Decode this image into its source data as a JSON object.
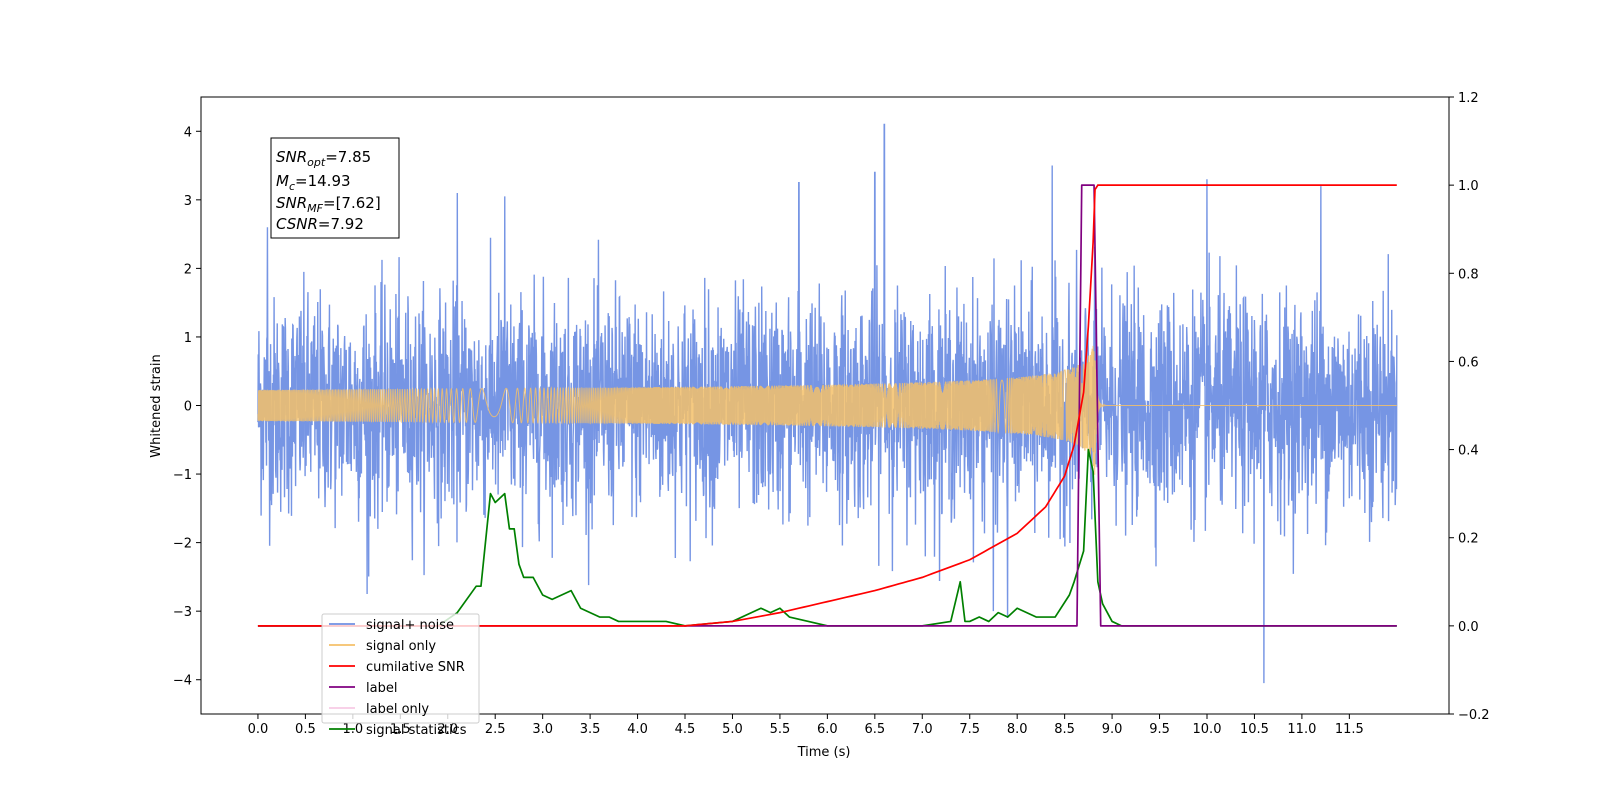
{
  "chart_data": {
    "type": "line",
    "xlabel": "Time (s)",
    "ylabel": "Whitened strain",
    "xlim": [
      -0.6,
      12.55
    ],
    "ylim": [
      -4.5,
      4.5
    ],
    "y2lim": [
      -0.2,
      1.2
    ],
    "x_ticks": [
      "0.0",
      "0.5",
      "1.0",
      "1.5",
      "2.0",
      "2.5",
      "3.0",
      "3.5",
      "4.0",
      "4.5",
      "5.0",
      "5.5",
      "6.0",
      "6.5",
      "7.0",
      "7.5",
      "8.0",
      "8.5",
      "9.0",
      "9.5",
      "10.0",
      "10.5",
      "11.0",
      "11.5"
    ],
    "y_ticks": [
      "4",
      "3",
      "2",
      "1",
      "0",
      "−1",
      "−2",
      "−3",
      "−4"
    ],
    "y2_ticks": [
      "1.2",
      "1.0",
      "0.8",
      "0.6",
      "0.4",
      "0.2",
      "0.0",
      "−0.2"
    ],
    "legend_position": "lower-left",
    "annotation": {
      "snr_opt": {
        "base": "SNR",
        "sub": "opt",
        "value": "=7.85"
      },
      "mc": {
        "base": "M",
        "sub": "c",
        "value": "=14.93"
      },
      "snr_mf": {
        "base": "SNR",
        "sub": "MF",
        "value": "=[7.62]"
      },
      "csnr": {
        "base": "CSNR",
        "sub": "",
        "value": "=7.92"
      }
    },
    "series": [
      {
        "name": "signal+ noise",
        "color": "#6f8fe3",
        "axis": "left",
        "kind": "noise",
        "x_range": [
          0.0,
          12.0
        ],
        "amplitude_typical": 1.3,
        "spikes": [
          [
            0.1,
            2.6
          ],
          [
            1.15,
            -2.75
          ],
          [
            2.1,
            3.1
          ],
          [
            2.6,
            3.05
          ],
          [
            5.7,
            3.25
          ],
          [
            6.5,
            3.4
          ],
          [
            6.6,
            4.1
          ],
          [
            8.37,
            3.5
          ],
          [
            7.75,
            -3.0
          ],
          [
            7.9,
            -3.1
          ],
          [
            10.0,
            3.3
          ],
          [
            10.6,
            -4.05
          ],
          [
            11.2,
            3.2
          ]
        ]
      },
      {
        "name": "signal only",
        "color": "#f5c16a",
        "axis": "left",
        "kind": "chirp",
        "t_merge": 8.82,
        "peak_amplitude": 1.0
      },
      {
        "name": "cumilative SNR",
        "color": "#ff0000",
        "axis": "right",
        "x": [
          0.0,
          4.5,
          5.0,
          5.5,
          6.0,
          6.5,
          7.0,
          7.5,
          8.0,
          8.3,
          8.5,
          8.6,
          8.7,
          8.75,
          8.8,
          8.82,
          8.85,
          12.0
        ],
        "y": [
          0.0,
          0.0,
          0.01,
          0.03,
          0.055,
          0.08,
          0.11,
          0.15,
          0.21,
          0.27,
          0.34,
          0.41,
          0.53,
          0.68,
          0.87,
          0.99,
          1.0,
          1.0
        ]
      },
      {
        "name": "label",
        "color": "#800080",
        "axis": "right",
        "x": [
          0.0,
          8.63,
          8.68,
          8.81,
          8.88,
          12.0
        ],
        "y": [
          0.0,
          0.0,
          1.0,
          1.0,
          0.0,
          0.0
        ]
      },
      {
        "name": "label only",
        "color": "#f2a6d2",
        "axis": "right",
        "hidden": true,
        "x": [],
        "y": []
      },
      {
        "name": "signal statistics",
        "color": "#008000",
        "axis": "right",
        "x": [
          0.0,
          1.9,
          2.1,
          2.3,
          2.35,
          2.45,
          2.5,
          2.6,
          2.65,
          2.7,
          2.75,
          2.8,
          2.9,
          3.0,
          3.1,
          3.3,
          3.4,
          3.5,
          3.6,
          3.7,
          3.8,
          4.0,
          4.3,
          4.5,
          5.0,
          5.2,
          5.3,
          5.4,
          5.5,
          5.6,
          5.8,
          6.0,
          6.3,
          7.0,
          7.3,
          7.4,
          7.45,
          7.5,
          7.6,
          7.7,
          7.8,
          7.9,
          8.0,
          8.2,
          8.4,
          8.55,
          8.6,
          8.7,
          8.75,
          8.8,
          8.85,
          8.9,
          9.0,
          9.1,
          12.0
        ],
        "y": [
          0.0,
          0.0,
          0.03,
          0.09,
          0.09,
          0.3,
          0.28,
          0.3,
          0.22,
          0.22,
          0.14,
          0.11,
          0.11,
          0.07,
          0.06,
          0.08,
          0.04,
          0.03,
          0.02,
          0.02,
          0.01,
          0.01,
          0.01,
          0.0,
          0.01,
          0.03,
          0.04,
          0.03,
          0.04,
          0.02,
          0.01,
          0.0,
          0.0,
          0.0,
          0.01,
          0.1,
          0.01,
          0.01,
          0.02,
          0.01,
          0.03,
          0.02,
          0.04,
          0.02,
          0.02,
          0.07,
          0.1,
          0.17,
          0.4,
          0.35,
          0.1,
          0.05,
          0.01,
          0.0,
          0.0
        ]
      }
    ]
  }
}
